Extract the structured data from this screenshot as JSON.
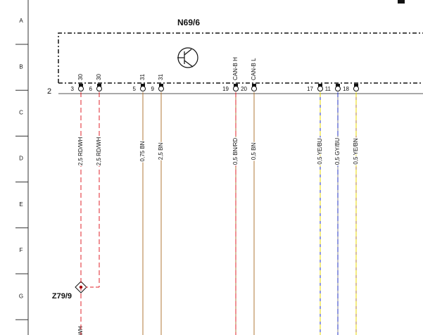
{
  "grid_rows": [
    "A",
    "B",
    "C",
    "D",
    "E",
    "F",
    "G"
  ],
  "component": {
    "name": "N69/6",
    "connector": "2",
    "pins": [
      {
        "number": "3",
        "signal": "30",
        "wire": "2,5 RD/WH"
      },
      {
        "number": "6",
        "signal": "30",
        "wire": "2,5 RD/WH"
      },
      {
        "number": "5",
        "signal": "31",
        "wire": "0,75 BN"
      },
      {
        "number": "9",
        "signal": "31",
        "wire": "2,5 BN"
      },
      {
        "number": "19",
        "signal": "CAN-B H",
        "wire": "0,5 BN/RD"
      },
      {
        "number": "20",
        "signal": "CAN-B L",
        "wire": "0,5 BN"
      },
      {
        "number": "17",
        "wire": "0,5 YE/BU"
      },
      {
        "number": "11",
        "wire": "0,5 GY/BU"
      },
      {
        "number": "18",
        "wire": "0,5 YE/BN"
      }
    ]
  },
  "splice": {
    "name": "Z79/9",
    "wire_label": "WH"
  }
}
